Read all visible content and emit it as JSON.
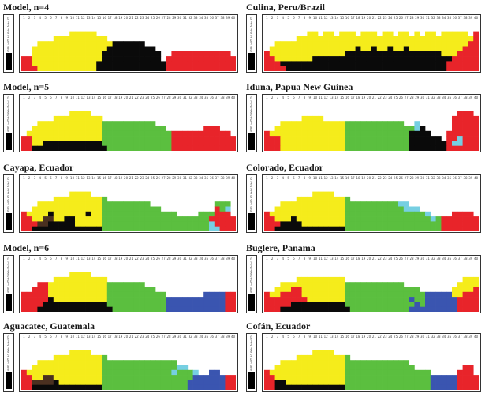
{
  "chart_data": {
    "type": "heatmap",
    "x_ticks": [
      "1",
      "2",
      "3",
      "4",
      "5",
      "6",
      "7",
      "8",
      "9",
      "10",
      "11",
      "12",
      "13",
      "14",
      "15",
      "16",
      "17",
      "18",
      "19",
      "20",
      "21",
      "22",
      "23",
      "24",
      "25",
      "26",
      "27",
      "28",
      "29",
      "30",
      "31",
      "32",
      "33",
      "34",
      "35",
      "36",
      "37",
      "38",
      "39",
      "40"
    ],
    "y_ticks": [
      "0",
      "1",
      "2",
      "3",
      "4",
      "5",
      "6",
      "7",
      "8",
      "9"
    ],
    "colors": {
      "A": "#e8242a",
      "B": "#f5ec1b",
      "C": "#0a0a0a",
      "D": "#5bbf3f",
      "E": "#3a55b0",
      "F": "#76cfe2",
      "G": "#4a3020",
      "W": "#ffffff"
    },
    "panels": [
      {
        "title": "Model, n=4",
        "rows": [
          "WWWWWWWWWWWWWWWWWWWWWWWWWWWWWWWWWWWWWWWW",
          "WWWWWWWWWWWWWWWWWWWWWWWWWWWWWWWWWWWWWWWW",
          "WWWWWWWWWBBBBBWWWWWWWWWWWWWWWWWWWWWWWWWW",
          "WWWWWWBBBBBBBBBBWWWWWWWWWWWWWWWWWWWWWWWW",
          "WWWBBBBBBBBBBBBBBCCCCCCWWWWWWWWWWWWWWWWW",
          "WWBBBBBBBBBBBBBBCCCCCCCCCWWWWWWWWWWWWWWW",
          "WWBBBBBBBBBBBBBCCCCCCCCCCCWWAAAAAAAAAAAW",
          "AABBBBBBBBBBBBBCCCCCCCCCCCWAAAAAAAAAAAAA",
          "AABBBBBBBBBBBBCCCCCCCCCCCCCAAAAAAAAAAAAA",
          "AAABBBBBBBBBBBCCCCCCCCCCCCCAAAAAAAAAAAAA"
        ]
      },
      {
        "title": "Culina, Peru/Brazil",
        "rows": [
          "WWWWWWWWWWWWWWWWWWWWWWWWWWWWWWWWWWWWWWWW",
          "WWWWWWWWWWWWWWWWWWWWWWWWWWWWWWWWWWWWWWWW",
          "WWWWWWWWBBWBBWBBBWBBBWBBWBBWBWBBWBBBBBWA",
          "WWWWWWBBBBBBBBBBBBBBBBBBBBBBBBBBBBBBBBBA",
          "WWBBBBBBBBBBBBBBBBBBBBBBBBBBBBBBBBBBBBAA",
          "WBBBBBBBBBBBBBBBBCBBCBBCBBCBBBBBBBBBBAAA",
          "ABBBBBBBBBBBBBBCCCCCCCCCCCCCCCCCCBBBAAAA",
          "AABBBBBBBCCCCCCCCCCCCCCCCCCCCCCCCCCAAAAA",
          "AAACCCCCCCCCCCCCCCCCCCCCCCCCCCCCCCAAAAAA",
          "AAAACCCCCCCCCCCCCCCCCCCCCCCCCCCCCCAAAAAA"
        ]
      },
      {
        "title": "Model, n=5",
        "rows": [
          "WWWWWWWWWWWWWWWWWWWWWWWWWWWWWWWWWWWWWWWW",
          "WWWWWWWWWWWWWWWWWWWWWWWWWWWWWWWWWWWWWWWW",
          "WWWWWWWWWBBBBWWWWWWWWWWWWWWWWWWWWWWWWWWW",
          "WWWWWWBBBBBBBBBWWWWWWWWWWWWWWWWWWWWWWWWW",
          "WWWBBBBBBBBBBBBDDDDDDDDDDWWWWWWWWWWWWWWW",
          "WWBBBBBBBBBBBBBDDDDDDDDDDDDWWWWWWWAAAWWW",
          "WBBBBBBBBBBBBBBDDDDDDDDDDDDDAAAAAAAAAAAW",
          "AABBBBBBBBBBBBBDDDDDDDDDDDDDAAAAAAAAAAAA",
          "AABBCCCCCCCCCCCDDDDDDDDDDDDDAAAAAAAAAAAA",
          "AACCCCCCCCCCCCCCDDDDDDDDDDDDAAAAAAAAAAAA"
        ]
      },
      {
        "title": "Iduna, Papua New Guinea",
        "rows": [
          "WWWWWWWWWWWWWWWWWWWWWWWWWWWWWWWWWWWWWWWW",
          "WWWWWWWWWWWWWWWWWWWWWWWWWWWWWWWWWWWWWWWW",
          "WWWWWWWWWWWWWWWWWWWWWWWWWWWWWWWWWWWWAAAW",
          "WWWWWWWBBBBWWWWWWWWWWWWWWWWWWWWWWWWAAAAA",
          "WWWBBBBBBBBBBBBDDDDDDDDDDDWWFWWWWWWAAAAA",
          "WWBBBBBBBBBBBBBDDDDDDDDDDDDDFCWWWWWAAAAA",
          "ABBBBBBBBBBBBBBDDDDDDDDDDDDCCCCWWWAAAAAA",
          "AAABBBBBBBBBBBBDDDDDDDDDDDDCCCCCCWAAFAAA",
          "AAABBBBBBBBBBBBDDDDDDDDDDDDCCCCCCCAFFAAA",
          "AAABBBBBBBBBBBBDDDDDDDDDDDDCCCCCCCAAAAAA"
        ]
      },
      {
        "title": "Cayapa, Ecuador",
        "rows": [
          "WWWWWWWWWWWWWWWWWWWWWWWWWWWWWWWWWWWWWWWW",
          "WWWWWWWWWWWWWWWWWWWWWWWWWWWWWWWWWWWWWWWW",
          "WWWWWWWWWBBBBWWWWWWWWWWWWWWWWWWWWWWWWWWW",
          "WWWWWWBBBBBBBBBDWWWWWWWWWWWWWWWWWWWWWWWW",
          "WWWBBBBBBBBBBBBDDDDDDDDDWWWWWWWWWWWWDDDW",
          "WWBBBBBBBBBBBBBDDDDDDDDDDDWWWWWWWWWWADFW",
          "ABBBBCBBBBBBCBBDDDDDDDDDDDDDDWWWWDDDAAAW",
          "AABBGGBBCCBBBBBDDDDDDDDDDDDDDDDDDDDAAAAA",
          "AAAGGCCCCCBBBBBDDDDDDDDDDDDDDDDDDDDFAAAA",
          "AACCCCCCCCCCCCCDDDDDDDDDDDDDDDDDDDDFFAAA"
        ]
      },
      {
        "title": "Colorado, Ecuador",
        "rows": [
          "WWWWWWWWWWWWWWWWWWWWWWWWWWWWWWWWWWWWWWWW",
          "WWWWWWWWWWWWWWWWWWWWWWWWWWWWWWWWWWWWWWWW",
          "WWWWWWWWWBBBBWWWWWWWWWWWWWWWWWWWWWWWWWWW",
          "WWWWWWBBBBBBBBBDWWWWWWWWWWWWWWWWWWWWWWWW",
          "WWWBBBBBBBBBBBBDDDDDDDDDDFFWWWWWWWWWWWWW",
          "WWBBBBBBBBBBBBBDDDDDDDDDDDFFFWWWWWWWWWWW",
          "ABBBBBBBBBBBBBBDDDDDDDDDDDDDDDFWWWWAAAAW",
          "AABBBCBBBBBBBBBDDDDDDDDDDDDDDDDFDAAAAAAA",
          "AAACCCCBBBBBBBBDDDDDDDDDDDDDDDDDDAAAAAAA",
          "AACCCCCCCCCCCCCDDDDDDDDDDDDDDDDDDAAAAAAA"
        ]
      },
      {
        "title": "Model, n=6",
        "rows": [
          "WWWWWWWWWWWWWWWWWWWWWWWWWWWWWWWWWWWWWWWW",
          "WWWWWWWWWWWWWWWWWWWWWWWWWWWWWWWWWWWWWWWW",
          "WWWWWWWWWBBBBWWWWWWWWWWWWWWWWWWWWWWWWWWW",
          "WWWWWWBBBBBBBBBBWWWWWWWWWWWWWWWWWWWWWWWW",
          "WWWAABBBBBBBBBBBDDDDDDDWWWWWWWWWWWWWWWWW",
          "WWAAABBBBBBBBBBBDDDDDDDDDWWWWWWWWWWWWWWW",
          "AAAAABBBBBBBBBBBDDDDDDDDDDDWWWWWWWEEEEAA",
          "AAAAACBBBBBBBBBBDDDDDDDDDDDEEEEEEEEEEEAA",
          "AAAACCCCCCCCCCCCDDDDDDDDDDDEEEEEEEEEEEAA",
          "AAACCCCCCCCCCCCCCDDDDDDDDDDEEEEEEEEEEEAA"
        ]
      },
      {
        "title": "Buglere, Panama",
        "rows": [
          "WWWWWWWWWWWWWWWWWWWWWWWWWWWWWWWWWWWWWWWW",
          "WWWWWWWWWWWWWWWWWWWWWWWWWWWWWWWWWWWWWWWW",
          "WWWWWWWWWWWWWWWWWWWWWWWWWWWWWWWWWWWWWWWW",
          "WWWWWWBBBBBBBBBWWWWWWWWWWWWWWWWWWWWWWBBB",
          "WWWBBBBBBBBBBBBDDDDDDDDDDDWWWWWWWWWWBBBB",
          "WWBBBAABBBBBBBBDDDDDDDDDDDDDDWWWWWWBBBBA",
          "ABBAAAABBBBBBBBDDDDDDDDDDDDDDDEEEEEBBAAA",
          "AAAAAAAABBBBBBBDDDDDDDDDDDDEDDEEEEEEAAAA",
          "AAAAACCCCCCCCCCDDDDDDDDDDDDDEDEEEEEEAAAA",
          "AAACCCCCCCCCCCCCDDDDDDDDDDDEEEEEEEEEAAAA"
        ]
      },
      {
        "title": "Aguacatec, Guatemala",
        "rows": [
          "WWWWWWWWWWWWWWWWWWWWWWWWWWWWWWWWWWWWWWWW",
          "WWWWWWWWWWWWWWWWWWWWWWWWWWWWWWWWWWWWWWWW",
          "WWWWWWWWWBBBBWWWWWWWWWWWWWWWWWWWWWWWWWWW",
          "WWWWWWBBBBBBBBBDWWWWWWWWWWWWWWWWWWWWWWWW",
          "WWWBBBBBBBBBBBBDDDDDDDDDDDDDDWWWWWWWWWWW",
          "WWBBBBBBBBBBBBBDDDDDDDDDDDDDDFFWWWWWWWWW",
          "ABBBBBBBBBBBBBBDDDDDDDDDDDDDFDDDFWWEEWWW",
          "AABBGGBBBBBBBBBDDDDDDDDDDDDDDDDDEEEEEEAA",
          "AAGGGGCBBBBBBBBDDDDDDDDDDDDDDDDEEEEEEEAA",
          "AACCCCCCCCCCCCCDDDDDDDDDDDDDDDDEEEEEEEAA"
        ]
      },
      {
        "title": "Cofán, Ecuador",
        "rows": [
          "WWWWWWWWWWWWWWWWWWWWWWWWWWWWWWWWWWWWWWWW",
          "WWWWWWWWWWWWWWWWWWWWWWWWWWWWWWWWWWWWWWWW",
          "WWWWWWWWWBBBBWWWWWWWWWWWWWWWWWWWWWWWWWWW",
          "WWWWWWBBBBBBBBBDWWWWWWWWWWWWWWWWWWWWWWWW",
          "WWWBBBBBBBBBBBBDDDDDDDDDDDDWWWWWWWWWWWWW",
          "WWBBBBBBBBBBBBBDDDDDDDDDDDDDWWWWWWWWWAAW",
          "ABBBBBBBBBBBBBBDDDDDDDDDDDDDDDDWWWWWAAAW",
          "AABBBBBBBBBBBBBDDDDDDDDDDDDDDDDEEEEEAAAA",
          "AACCBBBBBBBBBBBDDDDDDDDDDDDDDDDEEEEEAAAA",
          "AACCCCCCCCCCCCCDDDDDDDDDDDDDDDDEEEEEAAAA"
        ]
      }
    ]
  }
}
